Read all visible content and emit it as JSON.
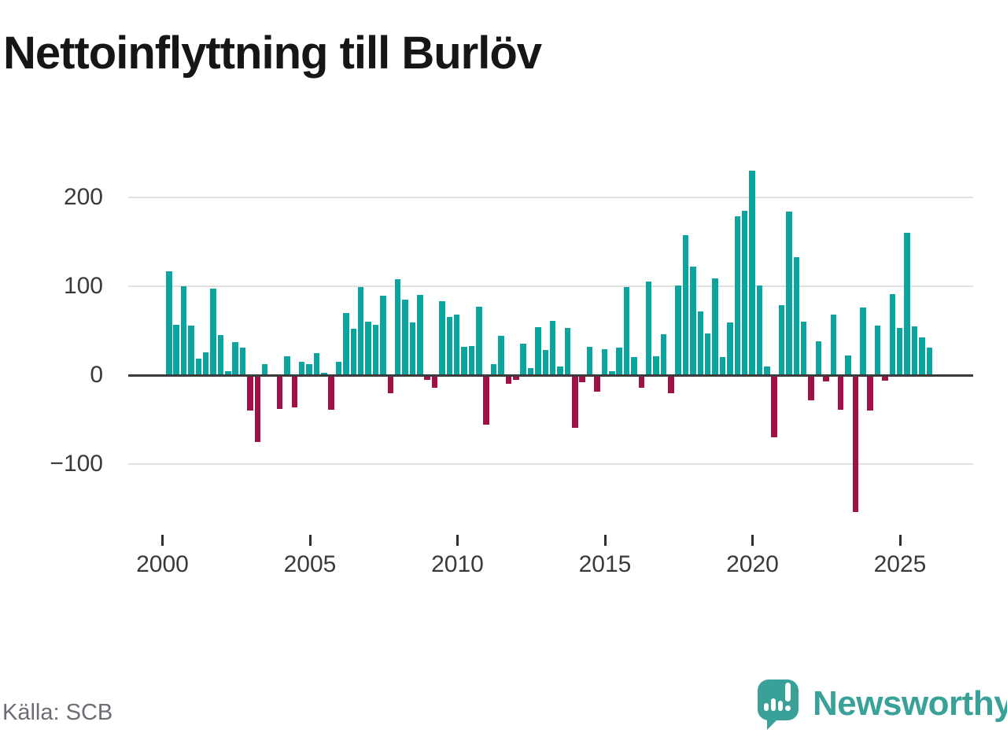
{
  "title": "Nettoinflyttning till Burlöv",
  "source": "Källa: SCB",
  "branding": {
    "name": "Newsworthy",
    "logo_icon": "speech-bubble-bar-chart-icon"
  },
  "colors": {
    "positive_bar": "#0ba49e",
    "negative_bar": "#9f1147",
    "brand_teal": "#3aa198",
    "axis_line": "#3b3b3c",
    "gridline": "#e1e1e1",
    "tick_label": "#3a3a3a",
    "source_text": "#6d6d76",
    "title_text": "#161616"
  },
  "chart_data": {
    "type": "bar",
    "title": "Nettoinflyttning till Burlöv",
    "frequency": "quarterly",
    "start_period": "2000-Q1",
    "end_period": "2025-Q4",
    "xlabel": "",
    "ylabel": "",
    "ylim": [
      -165,
      245
    ],
    "y_ticks": [
      200,
      100,
      0,
      -100
    ],
    "y_tick_labels": [
      "200",
      "100",
      "0",
      "−100"
    ],
    "x_tick_years": [
      2000,
      2005,
      2010,
      2015,
      2020,
      2025
    ],
    "x_tick_labels": [
      "2000",
      "2005",
      "2010",
      "2015",
      "2020",
      "2025"
    ],
    "grid": "horizontal",
    "legend": "none",
    "values": [
      117,
      57,
      100,
      56,
      19,
      26,
      97,
      45,
      4,
      37,
      31,
      -40,
      -75,
      12,
      0,
      -38,
      21,
      -36,
      15,
      12,
      25,
      3,
      -39,
      15,
      70,
      52,
      99,
      60,
      57,
      89,
      -20,
      108,
      85,
      59,
      90,
      -5,
      -14,
      83,
      65,
      68,
      32,
      33,
      77,
      -56,
      12,
      44,
      -10,
      -5,
      35,
      8,
      54,
      28,
      61,
      10,
      53,
      -59,
      -8,
      32,
      -19,
      29,
      4,
      31,
      99,
      20,
      -14,
      105,
      21,
      46,
      -20,
      101,
      157,
      122,
      72,
      47,
      109,
      20,
      59,
      179,
      185,
      230,
      101,
      10,
      -70,
      79,
      184,
      133,
      60,
      -28,
      38,
      -7,
      68,
      -39,
      22,
      -154,
      76,
      -40,
      56,
      -6,
      91,
      53,
      160,
      55,
      42,
      31
    ]
  }
}
